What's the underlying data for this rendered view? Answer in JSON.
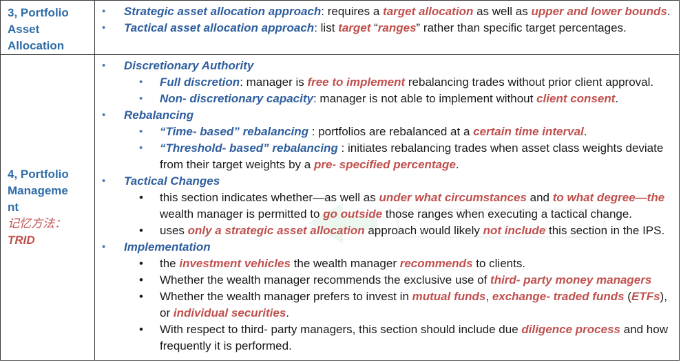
{
  "row1": {
    "label": [
      "3, Portfolio",
      "Asset",
      "Allocation"
    ],
    "items": [
      [
        {
          "t": "Strategic asset allocation approach",
          "s": "blue"
        },
        {
          "t": ": requires a ",
          "s": "plain"
        },
        {
          "t": "target allocation",
          "s": "red"
        },
        {
          "t": " as well as ",
          "s": "plain"
        },
        {
          "t": "upper and lower bounds",
          "s": "red"
        },
        {
          "t": ".",
          "s": "plain"
        }
      ],
      [
        {
          "t": "Tactical asset allocation approach",
          "s": "blue"
        },
        {
          "t": ": list ",
          "s": "plain"
        },
        {
          "t": "target",
          "s": "red"
        },
        {
          "t": " “",
          "s": "plain"
        },
        {
          "t": "ranges",
          "s": "red"
        },
        {
          "t": "” rather than specific target percentages.",
          "s": "plain"
        }
      ]
    ]
  },
  "row2": {
    "label": [
      "4, Portfolio",
      "Manageme",
      "nt"
    ],
    "label_cn": "记忆方法：",
    "label_mnemonic": "TRID",
    "sections": [
      {
        "heading": "Discretionary Authority",
        "sub_bullet": "•",
        "items": [
          [
            {
              "t": "Full discretion",
              "s": "blue"
            },
            {
              "t": ": manager is ",
              "s": "plain"
            },
            {
              "t": "free to implement",
              "s": "red"
            },
            {
              "t": " rebalancing trades without prior client approval.",
              "s": "plain"
            }
          ],
          [
            {
              "t": "Non- discretionary capacity",
              "s": "blue"
            },
            {
              "t": ": manager is not able to implement without ",
              "s": "plain"
            },
            {
              "t": "client consent",
              "s": "red"
            },
            {
              "t": ".",
              "s": "plain"
            }
          ]
        ]
      },
      {
        "heading": "Rebalancing",
        "sub_bullet": "•",
        "items": [
          [
            {
              "t": "“Time- based” rebalancing",
              "s": "blue"
            },
            {
              "t": " : portfolios are rebalanced at a ",
              "s": "plain"
            },
            {
              "t": "certain time interval",
              "s": "red"
            },
            {
              "t": ".",
              "s": "plain"
            }
          ],
          [
            {
              "t": "“Threshold- based” rebalancing",
              "s": "blue"
            },
            {
              "t": " : initiates rebalancing trades when asset class weights deviate from their target weights by a ",
              "s": "plain"
            },
            {
              "t": "pre- specified percentage",
              "s": "red"
            },
            {
              "t": ".",
              "s": "plain"
            }
          ]
        ]
      },
      {
        "heading": "Tactical Changes",
        "sub_bullet": "•",
        "dark": true,
        "items": [
          [
            {
              "t": "this section indicates whether—as well as ",
              "s": "plain"
            },
            {
              "t": "under what circumstances",
              "s": "red"
            },
            {
              "t": " and ",
              "s": "plain"
            },
            {
              "t": "to what degree—the",
              "s": "red"
            },
            {
              "t": " wealth manager is permitted to ",
              "s": "plain"
            },
            {
              "t": "go outside",
              "s": "red"
            },
            {
              "t": " those ranges when executing a tactical change.",
              "s": "plain"
            }
          ],
          [
            {
              "t": "uses ",
              "s": "plain"
            },
            {
              "t": "only a strategic asset allocation",
              "s": "red"
            },
            {
              "t": " approach would likely ",
              "s": "plain"
            },
            {
              "t": "not include",
              "s": "red"
            },
            {
              "t": " this section in the IPS.",
              "s": "plain"
            }
          ]
        ]
      },
      {
        "heading": "Implementation",
        "sub_bullet": "•",
        "dark": true,
        "items": [
          [
            {
              "t": "the ",
              "s": "plain"
            },
            {
              "t": "investment vehicles",
              "s": "red"
            },
            {
              "t": " the wealth manager ",
              "s": "plain"
            },
            {
              "t": "recommends",
              "s": "red"
            },
            {
              "t": " to clients.",
              "s": "plain"
            }
          ],
          [
            {
              "t": "Whether the wealth manager recommends the exclusive use of ",
              "s": "plain"
            },
            {
              "t": "third- party money managers",
              "s": "red"
            }
          ],
          [
            {
              "t": "Whether the wealth manager prefers to invest in ",
              "s": "plain"
            },
            {
              "t": "mutual funds",
              "s": "red"
            },
            {
              "t": ", ",
              "s": "plain"
            },
            {
              "t": "exchange- traded funds",
              "s": "red"
            },
            {
              "t": " (",
              "s": "plain"
            },
            {
              "t": "ETFs",
              "s": "red"
            },
            {
              "t": "), or ",
              "s": "plain"
            },
            {
              "t": "individual securities",
              "s": "red"
            },
            {
              "t": ".",
              "s": "plain"
            }
          ],
          [
            {
              "t": "With respect to third- party managers, this section should include due ",
              "s": "plain"
            },
            {
              "t": "diligence process",
              "s": "red"
            },
            {
              "t": " and how frequently it is performed.",
              "s": "plain"
            }
          ]
        ]
      }
    ]
  },
  "colors": {
    "blue": "#2e5e9e",
    "red": "#c0504d",
    "label_blue": "#2e6ca8",
    "bullet_blue": "#4a7ab5",
    "border": "#3a3a3a"
  },
  "icons": {
    "top_bullet": "•"
  }
}
